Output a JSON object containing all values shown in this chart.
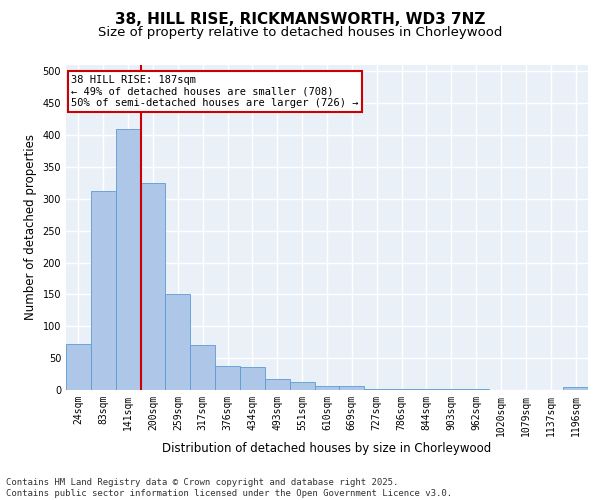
{
  "title1": "38, HILL RISE, RICKMANSWORTH, WD3 7NZ",
  "title2": "Size of property relative to detached houses in Chorleywood",
  "xlabel": "Distribution of detached houses by size in Chorleywood",
  "ylabel": "Number of detached properties",
  "categories": [
    "24sqm",
    "83sqm",
    "141sqm",
    "200sqm",
    "259sqm",
    "317sqm",
    "376sqm",
    "434sqm",
    "493sqm",
    "551sqm",
    "610sqm",
    "669sqm",
    "727sqm",
    "786sqm",
    "844sqm",
    "903sqm",
    "962sqm",
    "1020sqm",
    "1079sqm",
    "1137sqm",
    "1196sqm"
  ],
  "values": [
    72,
    313,
    410,
    325,
    150,
    70,
    37,
    36,
    17,
    12,
    6,
    6,
    2,
    2,
    2,
    2,
    1,
    0,
    0,
    0,
    4
  ],
  "bar_color": "#aec6e8",
  "bar_edge_color": "#5b9bd5",
  "vline_color": "#cc0000",
  "annotation_text": "38 HILL RISE: 187sqm\n← 49% of detached houses are smaller (708)\n50% of semi-detached houses are larger (726) →",
  "annotation_box_color": "#ffffff",
  "annotation_box_edge": "#cc0000",
  "footer": "Contains HM Land Registry data © Crown copyright and database right 2025.\nContains public sector information licensed under the Open Government Licence v3.0.",
  "ylim": [
    0,
    510
  ],
  "yticks": [
    0,
    50,
    100,
    150,
    200,
    250,
    300,
    350,
    400,
    450,
    500
  ],
  "bg_color": "#eaf0f8",
  "grid_color": "#ffffff",
  "title_fontsize": 11,
  "subtitle_fontsize": 9.5,
  "tick_fontsize": 7,
  "ylabel_fontsize": 8.5,
  "xlabel_fontsize": 8.5,
  "footer_fontsize": 6.5,
  "annotation_fontsize": 7.5
}
